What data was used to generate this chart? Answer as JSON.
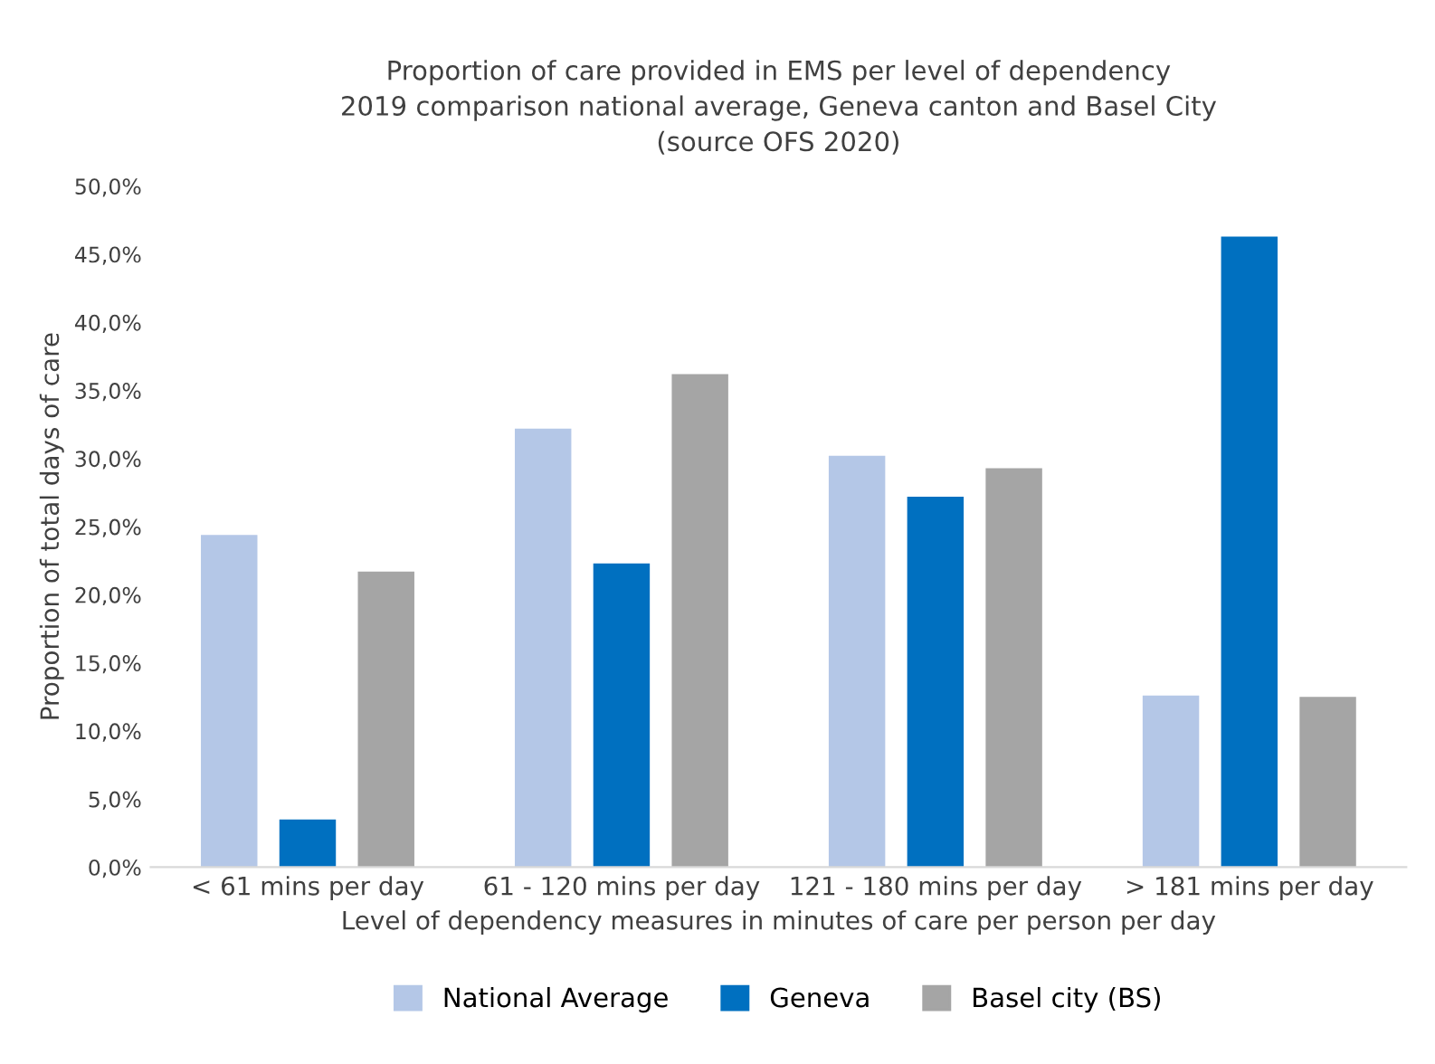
{
  "chart_data": {
    "type": "bar",
    "title": "Proportion of care provided in EMS per level of dependency\n2019 comparison national average, Geneva canton and Basel City\n(source OFS 2020)",
    "xlabel": "Level of dependency measures in minutes of care per person per day",
    "ylabel": "Proportion of total days of care",
    "categories": [
      "< 61 mins per day",
      "61 - 120 mins per day",
      "121 - 180 mins per day",
      "> 181 mins per day"
    ],
    "series": [
      {
        "name": "National Average",
        "color": "#b4c7e7",
        "values": [
          24.4,
          32.2,
          30.2,
          12.6
        ]
      },
      {
        "name": "Geneva",
        "color": "#0070c0",
        "values": [
          3.5,
          22.3,
          27.2,
          46.3
        ]
      },
      {
        "name": "Basel city (BS)",
        "color": "#a5a5a5",
        "values": [
          21.7,
          36.2,
          29.3,
          12.5
        ]
      }
    ],
    "ylim": [
      0,
      50
    ],
    "yticks": [
      {
        "value": 0,
        "label": "0,0%"
      },
      {
        "value": 5,
        "label": "5,0%"
      },
      {
        "value": 10,
        "label": "10,0%"
      },
      {
        "value": 15,
        "label": "15,0%"
      },
      {
        "value": 20,
        "label": "20,0%"
      },
      {
        "value": 25,
        "label": "25,0%"
      },
      {
        "value": 30,
        "label": "30,0%"
      },
      {
        "value": 35,
        "label": "35,0%"
      },
      {
        "value": 40,
        "label": "40,0%"
      },
      {
        "value": 45,
        "label": "45,0%"
      },
      {
        "value": 50,
        "label": "50,0%"
      }
    ],
    "grid": false,
    "legend": "bottom"
  }
}
